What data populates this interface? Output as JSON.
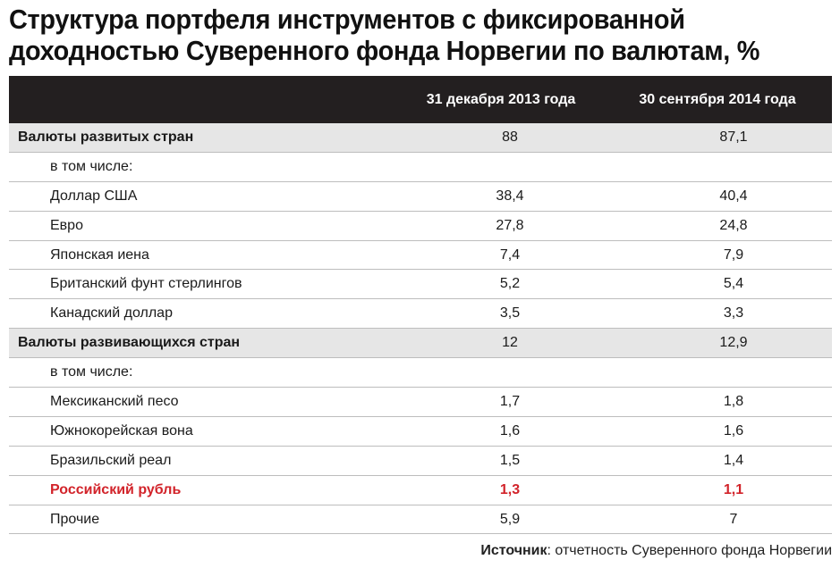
{
  "title_line1": "Структура портфеля инструментов с фиксированной",
  "title_line2": "доходностью Суверенного фонда Норвегии по валютам, %",
  "columns": [
    "31 декабря 2013 года",
    "30 сентября 2014 года"
  ],
  "source_label": "Источник",
  "source_text": ": отчетность Суверенного фонда Норвегии",
  "colors": {
    "header_bg": "#231f20",
    "group_bg": "#e6e6e6",
    "highlight": "#d2232a"
  },
  "chart_data": {
    "type": "table",
    "title": "Структура портфеля инструментов с фиксированной доходностью Суверенного фонда Норвегии по валютам, %",
    "columns": [
      "",
      "31 декабря 2013 года",
      "30 сентября 2014 года"
    ],
    "rows": [
      {
        "label": "Валюты развитых стран",
        "v2013": "88",
        "v2014": "87,1",
        "kind": "group"
      },
      {
        "label": "в том числе:",
        "v2013": "",
        "v2014": "",
        "kind": "sub"
      },
      {
        "label": "Доллар США",
        "v2013": "38,4",
        "v2014": "40,4",
        "kind": "sub"
      },
      {
        "label": "Евро",
        "v2013": "27,8",
        "v2014": "24,8",
        "kind": "sub"
      },
      {
        "label": "Японская иена",
        "v2013": "7,4",
        "v2014": "7,9",
        "kind": "sub"
      },
      {
        "label": "Британский фунт стерлингов",
        "v2013": "5,2",
        "v2014": "5,4",
        "kind": "sub"
      },
      {
        "label": "Канадский доллар",
        "v2013": "3,5",
        "v2014": "3,3",
        "kind": "sub"
      },
      {
        "label": "Валюты развивающихся стран",
        "v2013": "12",
        "v2014": "12,9",
        "kind": "group"
      },
      {
        "label": "в том числе:",
        "v2013": "",
        "v2014": "",
        "kind": "sub"
      },
      {
        "label": "Мексиканский песо",
        "v2013": "1,7",
        "v2014": "1,8",
        "kind": "sub"
      },
      {
        "label": "Южнокорейская вона",
        "v2013": "1,6",
        "v2014": "1,6",
        "kind": "sub"
      },
      {
        "label": "Бразильский реал",
        "v2013": "1,5",
        "v2014": "1,4",
        "kind": "sub"
      },
      {
        "label": "Российский рубль",
        "v2013": "1,3",
        "v2014": "1,1",
        "kind": "highlight"
      },
      {
        "label": "Прочие",
        "v2013": "5,9",
        "v2014": "7",
        "kind": "sub"
      }
    ]
  }
}
